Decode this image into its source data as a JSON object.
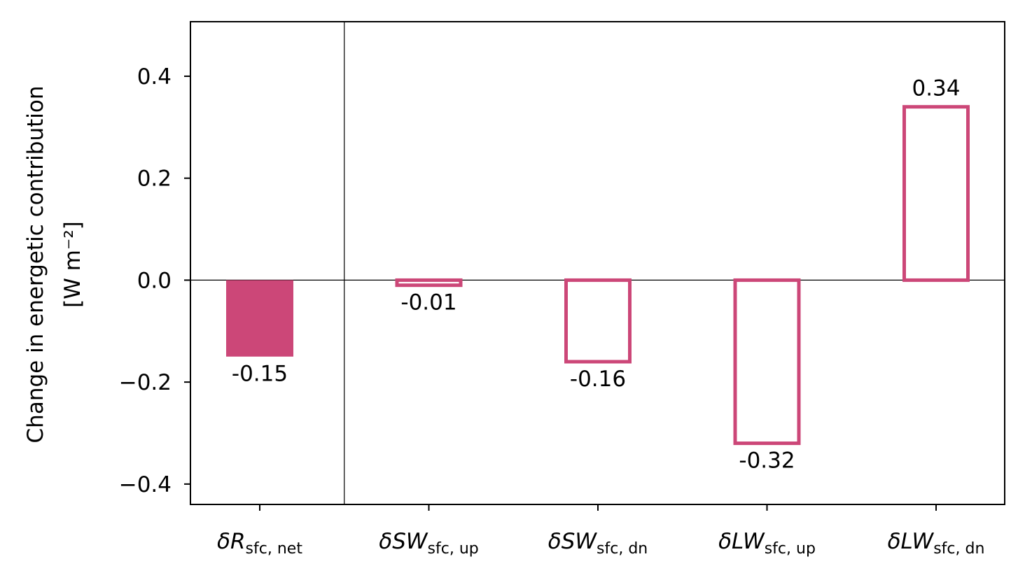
{
  "chart_data": {
    "type": "bar",
    "ylabel_line1": "Change in energetic contribution",
    "ylabel_line2": "[W m⁻²]",
    "ylim": [
      -0.44,
      0.507
    ],
    "yticks": [
      -0.4,
      -0.2,
      0.0,
      0.2,
      0.4
    ],
    "ytick_labels": [
      "−0.4",
      "−0.2",
      "0.0",
      "0.2",
      "0.4"
    ],
    "categories": [
      {
        "main": "δR",
        "sub": "sfc, net"
      },
      {
        "main": "δSW",
        "sub": "sfc, up"
      },
      {
        "main": "δSW",
        "sub": "sfc, dn"
      },
      {
        "main": "δLW",
        "sub": "sfc, up"
      },
      {
        "main": "δLW",
        "sub": "sfc, dn"
      }
    ],
    "values": [
      -0.15,
      -0.01,
      -0.16,
      -0.32,
      0.34
    ],
    "value_labels": [
      "-0.15",
      "-0.01",
      "-0.16",
      "-0.32",
      "0.34"
    ],
    "styles": [
      "filled",
      "outline",
      "outline",
      "outline",
      "outline"
    ],
    "bar_color": "#cc4778",
    "zero_line": true,
    "separator_after_first": true,
    "grid": false
  }
}
